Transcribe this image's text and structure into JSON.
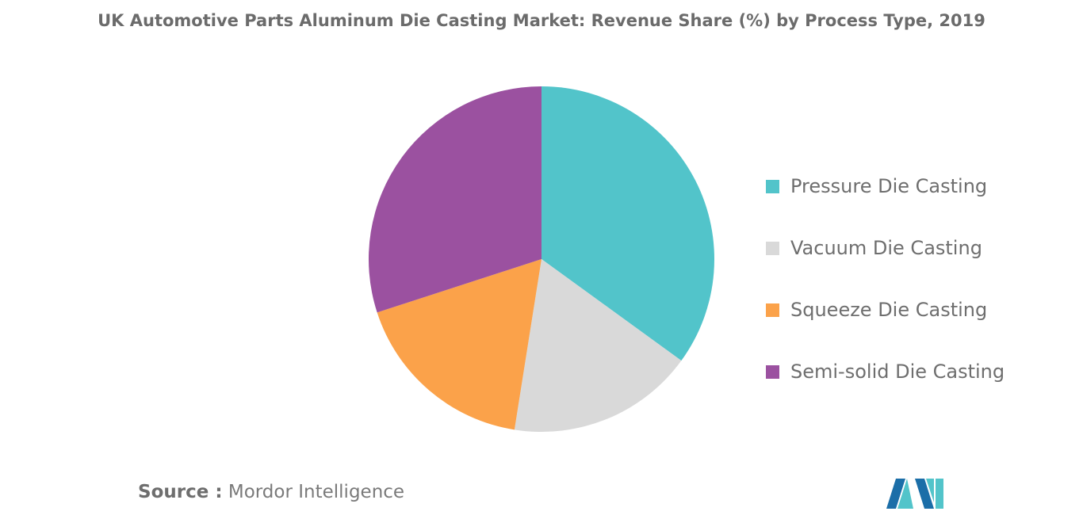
{
  "chart_data": {
    "type": "pie",
    "title": "UK Automotive Parts Aluminum Die Casting Market: Revenue Share (%) by Process Type, 2019",
    "categories": [
      "Pressure Die Casting",
      "Vacuum Die Casting",
      "Squeeze Die Casting",
      "Semi-solid Die Casting"
    ],
    "values": [
      35,
      17.5,
      17.5,
      30
    ],
    "colors": [
      "#52c4ca",
      "#d9d9d9",
      "#fba24a",
      "#9b51a0"
    ],
    "legend_position": "right",
    "start_angle": "top, clockwise"
  },
  "source": {
    "label": "Source :",
    "text": "Mordor Intelligence"
  },
  "logo": {
    "text": "MI",
    "colors": [
      "#1b6ea8",
      "#52c4ca"
    ]
  }
}
